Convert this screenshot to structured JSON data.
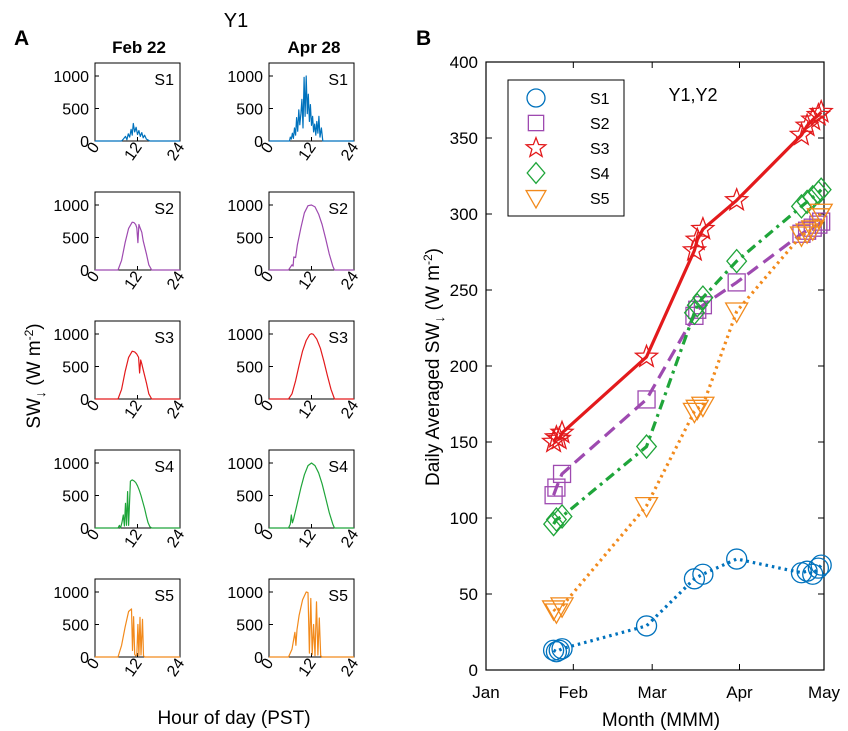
{
  "panel_a": {
    "panel_label": "A",
    "title": "Y1",
    "columns": [
      "Feb 22",
      "Apr 28"
    ],
    "ylabel_main": "SW",
    "ylabel_arrow": "↓",
    "ylabel_units_pre": " (W m",
    "ylabel_units_exp": "-2",
    "ylabel_units_post": ")",
    "xlabel": "Hour of day (PST)",
    "yticks": [
      "0",
      "500",
      "1000"
    ],
    "xticks": [
      "0",
      "12",
      "24"
    ],
    "stations": [
      "S1",
      "S2",
      "S3",
      "S4",
      "S5"
    ]
  },
  "panel_b": {
    "panel_label": "B",
    "ylabel_main": "Daily Averaged SW",
    "ylabel_arrow": "↓",
    "ylabel_units_pre": " (W m",
    "ylabel_units_exp": "-2",
    "ylabel_units_post": ")",
    "xlabel": "Month (MMM)",
    "annotation": "Y1,Y2",
    "xtick_labels": [
      "Jan",
      "Feb",
      "Mar",
      "Apr",
      "May"
    ],
    "ytick_labels": [
      "0",
      "50",
      "100",
      "150",
      "200",
      "250",
      "300",
      "350",
      "400"
    ]
  },
  "colors": {
    "S1": "#0072BD",
    "S2": "#9E4AB0",
    "S3": "#E31A1C",
    "S4": "#1FA53A",
    "S5": "#F28A1C"
  },
  "chart_data": [
    {
      "type": "line",
      "id": "panel-a-diurnal",
      "title": "Y1",
      "xlabel": "Hour of day (PST)",
      "ylabel": "SW↓ (W m-2)",
      "xlim": [
        0,
        24
      ],
      "ylim": [
        0,
        1200
      ],
      "xticks": [
        0,
        12,
        24
      ],
      "yticks": [
        0,
        500,
        1000
      ],
      "columns": [
        "Feb 22",
        "Apr 28"
      ],
      "series": [
        {
          "name": "S1",
          "column": "Feb 22",
          "x": [
            0,
            7.5,
            8,
            8.6,
            9,
            9.4,
            9.8,
            10.2,
            10.5,
            10.8,
            11.2,
            11.6,
            12,
            12.4,
            12.8,
            13.2,
            13.6,
            14,
            14.5,
            15.5,
            24
          ],
          "y": [
            0,
            0,
            30,
            70,
            20,
            110,
            60,
            180,
            90,
            270,
            140,
            210,
            100,
            160,
            70,
            130,
            50,
            90,
            30,
            0,
            0
          ]
        },
        {
          "name": "S1",
          "column": "Apr 28",
          "x": [
            0,
            5.8,
            6,
            6.3,
            6.6,
            6.9,
            7.2,
            7.5,
            7.8,
            8.1,
            8.4,
            8.7,
            9.0,
            9.3,
            9.6,
            9.9,
            10.2,
            10.5,
            10.8,
            11.1,
            11.4,
            11.7,
            12.0,
            12.3,
            12.6,
            12.9,
            13.2,
            13.5,
            13.8,
            14.1,
            14.4,
            14.8,
            15.2,
            24
          ],
          "y": [
            0,
            0,
            60,
            30,
            120,
            40,
            200,
            90,
            360,
            150,
            480,
            250,
            420,
            640,
            200,
            980,
            380,
            1000,
            420,
            720,
            300,
            560,
            240,
            380,
            140,
            260,
            90,
            300,
            120,
            380,
            60,
            200,
            0,
            0
          ]
        },
        {
          "name": "S2",
          "column": "Feb 22",
          "x": [
            0,
            6.5,
            7.5,
            8.5,
            9.5,
            10.5,
            11,
            11.5,
            11.8,
            12.1,
            12.4,
            12.8,
            13.2,
            13.6,
            14.5,
            15.2,
            16,
            24
          ],
          "y": [
            0,
            0,
            150,
            420,
            640,
            735,
            730,
            700,
            650,
            420,
            700,
            640,
            580,
            450,
            250,
            80,
            0,
            0
          ]
        },
        {
          "name": "S2",
          "column": "Apr 28",
          "x": [
            0,
            5.5,
            6.5,
            6.8,
            7,
            7.5,
            8,
            9,
            10,
            11,
            12,
            13,
            14,
            15,
            16,
            17,
            18,
            18.5,
            24
          ],
          "y": [
            0,
            0,
            80,
            60,
            200,
            190,
            380,
            650,
            880,
            990,
            1000,
            970,
            860,
            700,
            480,
            250,
            60,
            0,
            0
          ]
        },
        {
          "name": "S3",
          "column": "Feb 22",
          "x": [
            0,
            6.5,
            7.5,
            8.5,
            9.5,
            10.5,
            11.2,
            11.8,
            12.3,
            12.6,
            12.9,
            13.2,
            13.6,
            14.5,
            15.2,
            16,
            24
          ],
          "y": [
            0,
            0,
            150,
            420,
            640,
            735,
            725,
            690,
            640,
            400,
            600,
            540,
            450,
            250,
            80,
            0,
            0
          ]
        },
        {
          "name": "S3",
          "column": "Apr 28",
          "x": [
            0,
            5.5,
            6.5,
            7.5,
            8.5,
            9.5,
            10.5,
            11.5,
            12,
            12.5,
            13.5,
            14.5,
            15.5,
            16.5,
            17.5,
            18.5,
            24
          ],
          "y": [
            0,
            0,
            80,
            280,
            520,
            740,
            900,
            990,
            1005,
            995,
            920,
            780,
            580,
            360,
            150,
            0,
            0
          ]
        },
        {
          "name": "S4",
          "column": "Feb 22",
          "x": [
            0,
            6.5,
            6.9,
            7.2,
            7.6,
            8.0,
            8.3,
            8.6,
            8.9,
            9.2,
            9.5,
            10,
            10.5,
            11,
            11.5,
            12,
            12.5,
            13,
            13.5,
            14,
            14.5,
            15,
            15.5,
            16,
            24
          ],
          "y": [
            0,
            0,
            40,
            0,
            80,
            200,
            30,
            380,
            40,
            560,
            40,
            720,
            740,
            725,
            700,
            650,
            580,
            500,
            400,
            300,
            180,
            80,
            20,
            0,
            0
          ]
        },
        {
          "name": "S4",
          "column": "Apr 28",
          "x": [
            0,
            5.5,
            6,
            6.3,
            6.6,
            7,
            8,
            9,
            10,
            11,
            12,
            13,
            14,
            15,
            16,
            17,
            18,
            18.5,
            24
          ],
          "y": [
            0,
            0,
            60,
            200,
            80,
            150,
            380,
            620,
            820,
            960,
            1000,
            960,
            850,
            680,
            460,
            240,
            60,
            0,
            0
          ]
        },
        {
          "name": "S5",
          "column": "Feb 22",
          "x": [
            0,
            6.5,
            7.5,
            8.5,
            9.5,
            10.3,
            10.6,
            10.9,
            11.2,
            11.5,
            11.8,
            12.1,
            12.4,
            12.7,
            13,
            13.4,
            13.7,
            14,
            24
          ],
          "y": [
            0,
            0,
            180,
            460,
            700,
            740,
            100,
            620,
            40,
            20,
            30,
            500,
            20,
            610,
            30,
            580,
            20,
            0,
            0
          ]
        },
        {
          "name": "S5",
          "column": "Apr 28",
          "x": [
            0,
            5.5,
            6.5,
            7.3,
            7.6,
            7.9,
            8.5,
            9.5,
            10.5,
            11.0,
            11.4,
            11.8,
            12.2,
            12.6,
            13.0,
            13.4,
            13.8,
            14.2,
            14.6,
            15.0,
            24
          ],
          "y": [
            0,
            0,
            120,
            380,
            180,
            420,
            640,
            880,
            1000,
            990,
            60,
            900,
            40,
            500,
            20,
            850,
            30,
            600,
            20,
            0,
            0
          ]
        }
      ]
    },
    {
      "type": "line",
      "id": "panel-b-daily",
      "xlabel": "Month (MMM)",
      "ylabel": "Daily Averaged SW↓ (W m-2)",
      "x_scale": "time",
      "xlim": [
        "Jan 1",
        "May 1"
      ],
      "ylim": [
        0,
        400
      ],
      "yticks": [
        0,
        50,
        100,
        150,
        200,
        250,
        300,
        350,
        400
      ],
      "xticks": [
        "Jan",
        "Feb",
        "Mar",
        "Apr",
        "May"
      ],
      "legend_location": "top-left",
      "annotation": "Y1,Y2",
      "series": [
        {
          "name": "S1",
          "marker": "circle",
          "line_style": "dotted",
          "x": [
            "Jan 25",
            "Jan 26",
            "Jan 27",
            "Jan 28",
            "Feb 27",
            "Mar 16",
            "Mar 19",
            "Mar 31",
            "Apr 23",
            "Apr 25",
            "Apr 27",
            "Apr 29",
            "Apr 30"
          ],
          "y": [
            13,
            12,
            13,
            14,
            29,
            60,
            63,
            73,
            64,
            65,
            63,
            67,
            69
          ]
        },
        {
          "name": "S2",
          "marker": "square",
          "line_style": "dashed",
          "x": [
            "Jan 25",
            "Jan 26",
            "Jan 28",
            "Feb 27",
            "Mar 16",
            "Mar 17",
            "Mar 19",
            "Mar 31",
            "Apr 23",
            "Apr 25",
            "Apr 27",
            "Apr 29",
            "Apr 30"
          ],
          "y": [
            115,
            120,
            129,
            178,
            233,
            237,
            240,
            255,
            287,
            289,
            291,
            293,
            295
          ]
        },
        {
          "name": "S3",
          "marker": "star",
          "line_style": "solid",
          "x": [
            "Jan 25",
            "Jan 26",
            "Jan 27",
            "Jan 28",
            "Feb 27",
            "Mar 16",
            "Mar 17",
            "Mar 19",
            "Mar 31",
            "Apr 23",
            "Apr 25",
            "Apr 27",
            "Apr 29",
            "Apr 30"
          ],
          "y": [
            150,
            153,
            152,
            156,
            206,
            276,
            283,
            290,
            309,
            352,
            358,
            362,
            365,
            367
          ]
        },
        {
          "name": "S4",
          "marker": "diamond",
          "line_style": "dash-dot",
          "x": [
            "Jan 25",
            "Jan 26",
            "Jan 28",
            "Feb 27",
            "Mar 16",
            "Mar 17",
            "Mar 19",
            "Mar 31",
            "Apr 23",
            "Apr 25",
            "Apr 27",
            "Apr 29",
            "Apr 30"
          ],
          "y": [
            96,
            99,
            101,
            147,
            235,
            240,
            245,
            269,
            305,
            308,
            311,
            314,
            316
          ]
        },
        {
          "name": "S5",
          "marker": "triangle-down",
          "line_style": "dotted",
          "x": [
            "Jan 25",
            "Jan 26",
            "Jan 28",
            "Feb 27",
            "Mar 16",
            "Mar 17",
            "Mar 19",
            "Mar 31",
            "Apr 23",
            "Apr 25",
            "Apr 27",
            "Apr 29",
            "Apr 30"
          ],
          "y": [
            40,
            38,
            42,
            108,
            170,
            172,
            174,
            236,
            286,
            288,
            290,
            298,
            301
          ]
        }
      ]
    }
  ]
}
